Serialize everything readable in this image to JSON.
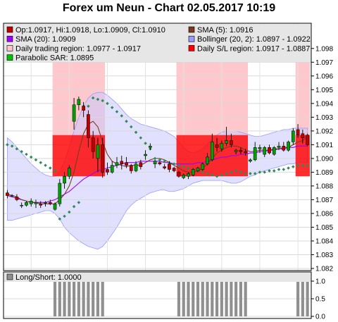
{
  "title": "Forex um Neun - Chart 02.05.2017 10:19",
  "colors": {
    "background": "#ffffff",
    "legend_bg": "#e6e6e6",
    "candle_up": "#00a000",
    "candle_down": "#c00000",
    "sma5": "#7a3b1c",
    "sma20": "#a000ff",
    "bollinger": "#c9c9ff",
    "bollinger_edge": "#9a9aff",
    "trading_region": "#ffc8cc",
    "sl_region": "#ff0000",
    "sl_region_overlap": "#d81a40",
    "sar": "#2e8b57",
    "longshort": "#909090"
  },
  "chart_data": [
    {
      "type": "candlestick",
      "legend": [
        {
          "label": "Op:1.0917, Hi:1.0918, Lo:1.0909, Cl:1.0910",
          "swatch": "#c00000"
        },
        {
          "label": "SMA (5): 1.0916",
          "swatch": "#7a3b1c"
        },
        {
          "label": "SMA (20): 1.0909",
          "swatch": "#a000ff"
        },
        {
          "label": "Bollinger (20, 2): 1.0897 - 1.0922",
          "swatch": "#9a9aff"
        },
        {
          "label": "Daily trading region: 1.0977 - 1.0917",
          "swatch": "#ffc8cc"
        },
        {
          "label": "Daily S/L region: 1.0917 - 1.0887",
          "swatch": "#ff0000"
        },
        {
          "label": "Parabolic SAR: 1.0895",
          "swatch": "#00c000"
        }
      ],
      "ylim": [
        1.082,
        1.0985
      ],
      "yticks": [
        "1.082",
        "1.083",
        "1.084",
        "1.085",
        "1.086",
        "1.087",
        "1.088",
        "1.089",
        "1.090",
        "1.091",
        "1.092",
        "1.093",
        "1.094",
        "1.095",
        "1.096",
        "1.097",
        "1.098"
      ],
      "candles": [
        {
          "o": 1.0875,
          "h": 1.0877,
          "l": 1.0871,
          "c": 1.0873
        },
        {
          "o": 1.0873,
          "h": 1.0874,
          "l": 1.0872,
          "c": 1.0873
        },
        {
          "o": 1.0872,
          "h": 1.0874,
          "l": 1.0869,
          "c": 1.087
        },
        {
          "o": 1.0866,
          "h": 1.0868,
          "l": 1.0864,
          "c": 1.0866
        },
        {
          "o": 1.0866,
          "h": 1.0869,
          "l": 1.0865,
          "c": 1.0868
        },
        {
          "o": 1.0867,
          "h": 1.0871,
          "l": 1.0865,
          "c": 1.0869
        },
        {
          "o": 1.0867,
          "h": 1.087,
          "l": 1.0864,
          "c": 1.0868
        },
        {
          "o": 1.0867,
          "h": 1.0869,
          "l": 1.0864,
          "c": 1.0866
        },
        {
          "o": 1.0868,
          "h": 1.0869,
          "l": 1.0865,
          "c": 1.0868
        },
        {
          "o": 1.0868,
          "h": 1.087,
          "l": 1.0866,
          "c": 1.0867
        },
        {
          "o": 1.0863,
          "h": 1.0868,
          "l": 1.0862,
          "c": 1.0867
        },
        {
          "o": 1.0867,
          "h": 1.0885,
          "l": 1.0865,
          "c": 1.0882
        },
        {
          "o": 1.0882,
          "h": 1.089,
          "l": 1.0878,
          "c": 1.0887
        },
        {
          "o": 1.0887,
          "h": 1.0895,
          "l": 1.0885,
          "c": 1.0893
        },
        {
          "o": 1.0927,
          "h": 1.0944,
          "l": 1.0921,
          "c": 1.0939
        },
        {
          "o": 1.0939,
          "h": 1.0945,
          "l": 1.0935,
          "c": 1.0943
        },
        {
          "o": 1.0938,
          "h": 1.0941,
          "l": 1.093,
          "c": 1.0935
        },
        {
          "o": 1.0932,
          "h": 1.0935,
          "l": 1.0908,
          "c": 1.0915
        },
        {
          "o": 1.0915,
          "h": 1.092,
          "l": 1.09,
          "c": 1.0905
        },
        {
          "o": 1.09,
          "h": 1.0915,
          "l": 1.089,
          "c": 1.091
        },
        {
          "o": 1.091,
          "h": 1.0915,
          "l": 1.0886,
          "c": 1.089
        },
        {
          "o": 1.0892,
          "h": 1.0897,
          "l": 1.0888,
          "c": 1.089
        },
        {
          "o": 1.089,
          "h": 1.0898,
          "l": 1.0889,
          "c": 1.0895
        },
        {
          "o": 1.0895,
          "h": 1.0901,
          "l": 1.0893,
          "c": 1.0897
        },
        {
          "o": 1.0898,
          "h": 1.0902,
          "l": 1.0892,
          "c": 1.0896
        },
        {
          "o": 1.0897,
          "h": 1.0901,
          "l": 1.0893,
          "c": 1.0895
        },
        {
          "o": 1.0895,
          "h": 1.0896,
          "l": 1.0889,
          "c": 1.0891
        },
        {
          "o": 1.0891,
          "h": 1.0898,
          "l": 1.089,
          "c": 1.0896
        },
        {
          "o": 1.0897,
          "h": 1.0899,
          "l": 1.0892,
          "c": 1.0894
        },
        {
          "o": 1.0902,
          "h": 1.0906,
          "l": 1.0899,
          "c": 1.0903
        },
        {
          "o": 1.0908,
          "h": 1.0911,
          "l": 1.0906,
          "c": 1.0909
        },
        {
          "o": 1.0896,
          "h": 1.0899,
          "l": 1.0893,
          "c": 1.0898
        },
        {
          "o": 1.0897,
          "h": 1.0898,
          "l": 1.0895,
          "c": 1.0896
        },
        {
          "o": 1.0894,
          "h": 1.0896,
          "l": 1.0892,
          "c": 1.0893
        },
        {
          "o": 1.0896,
          "h": 1.0898,
          "l": 1.089,
          "c": 1.0892
        },
        {
          "o": 1.0893,
          "h": 1.0894,
          "l": 1.089,
          "c": 1.0891
        },
        {
          "o": 1.089,
          "h": 1.0891,
          "l": 1.0886,
          "c": 1.0887
        },
        {
          "o": 1.0886,
          "h": 1.0889,
          "l": 1.0885,
          "c": 1.0888
        },
        {
          "o": 1.0887,
          "h": 1.089,
          "l": 1.0885,
          "c": 1.0889
        },
        {
          "o": 1.0888,
          "h": 1.0893,
          "l": 1.0887,
          "c": 1.0892
        },
        {
          "o": 1.0891,
          "h": 1.0894,
          "l": 1.089,
          "c": 1.0893
        },
        {
          "o": 1.0892,
          "h": 1.0897,
          "l": 1.0891,
          "c": 1.0896
        },
        {
          "o": 1.0896,
          "h": 1.0904,
          "l": 1.0895,
          "c": 1.0901
        },
        {
          "o": 1.0899,
          "h": 1.0918,
          "l": 1.0898,
          "c": 1.0912
        },
        {
          "o": 1.091,
          "h": 1.0915,
          "l": 1.0905,
          "c": 1.0908
        },
        {
          "o": 1.0907,
          "h": 1.0913,
          "l": 1.0905,
          "c": 1.0911
        },
        {
          "o": 1.0911,
          "h": 1.0923,
          "l": 1.0909,
          "c": 1.0913
        },
        {
          "o": 1.0913,
          "h": 1.0918,
          "l": 1.0908,
          "c": 1.091
        },
        {
          "o": 1.0905,
          "h": 1.0907,
          "l": 1.0903,
          "c": 1.0906
        },
        {
          "o": 1.0906,
          "h": 1.0908,
          "l": 1.0903,
          "c": 1.0905
        },
        {
          "o": 1.0905,
          "h": 1.0907,
          "l": 1.0902,
          "c": 1.0904
        },
        {
          "o": 1.0898,
          "h": 1.09,
          "l": 1.0897,
          "c": 1.0899
        },
        {
          "o": 1.0899,
          "h": 1.0912,
          "l": 1.0898,
          "c": 1.0908
        },
        {
          "o": 1.0907,
          "h": 1.091,
          "l": 1.0904,
          "c": 1.0908
        },
        {
          "o": 1.0903,
          "h": 1.0909,
          "l": 1.0901,
          "c": 1.0908
        },
        {
          "o": 1.0908,
          "h": 1.091,
          "l": 1.0903,
          "c": 1.0904
        },
        {
          "o": 1.0903,
          "h": 1.0909,
          "l": 1.0902,
          "c": 1.0908
        },
        {
          "o": 1.0908,
          "h": 1.0912,
          "l": 1.0906,
          "c": 1.0909
        },
        {
          "o": 1.0909,
          "h": 1.0912,
          "l": 1.0905,
          "c": 1.0906
        },
        {
          "o": 1.0906,
          "h": 1.0913,
          "l": 1.0905,
          "c": 1.0912
        },
        {
          "o": 1.0912,
          "h": 1.0922,
          "l": 1.091,
          "c": 1.092
        },
        {
          "o": 1.0921,
          "h": 1.0925,
          "l": 1.0915,
          "c": 1.0917
        },
        {
          "o": 1.0918,
          "h": 1.0921,
          "l": 1.0911,
          "c": 1.0915
        },
        {
          "o": 1.0917,
          "h": 1.0918,
          "l": 1.0909,
          "c": 1.091
        }
      ],
      "sma5": [
        1.0874,
        1.0873,
        1.0872,
        1.087,
        1.0869,
        1.0868,
        1.0868,
        1.0867,
        1.0867,
        1.0867,
        1.0867,
        1.087,
        1.0874,
        1.088,
        1.089,
        1.0905,
        1.0918,
        1.0925,
        1.0927,
        1.0923,
        1.0912,
        1.0903,
        1.0898,
        1.0896,
        1.0895,
        1.0894,
        1.0895,
        1.0895,
        1.0895,
        1.0897,
        1.0899,
        1.09,
        1.09,
        1.0899,
        1.0897,
        1.0895,
        1.0893,
        1.0891,
        1.089,
        1.089,
        1.0891,
        1.0893,
        1.0896,
        1.09,
        1.0904,
        1.0906,
        1.0908,
        1.0909,
        1.0909,
        1.0908,
        1.0906,
        1.0905,
        1.0905,
        1.0906,
        1.0906,
        1.0906,
        1.0907,
        1.0907,
        1.0908,
        1.0908,
        1.091,
        1.0912,
        1.0913,
        1.0916
      ],
      "sma20": [
        1.0873,
        1.0872,
        1.0871,
        1.087,
        1.0869,
        1.0868,
        1.0868,
        1.0868,
        1.0868,
        1.0869,
        1.087,
        1.0872,
        1.0874,
        1.0876,
        1.0879,
        1.0882,
        1.0885,
        1.0887,
        1.0889,
        1.0891,
        1.0892,
        1.0893,
        1.0894,
        1.0895,
        1.0896,
        1.0897,
        1.0897,
        1.0897,
        1.0898,
        1.0898,
        1.0898,
        1.0898,
        1.0898,
        1.0897,
        1.0897,
        1.0896,
        1.0896,
        1.0896,
        1.0896,
        1.0896,
        1.0897,
        1.0897,
        1.0898,
        1.0899,
        1.09,
        1.0901,
        1.0901,
        1.0902,
        1.0902,
        1.0903,
        1.0903,
        1.0904,
        1.0904,
        1.0905,
        1.0905,
        1.0906,
        1.0906,
        1.0907,
        1.0907,
        1.0908,
        1.0908,
        1.0909,
        1.0909,
        1.0909
      ],
      "bollinger_upper": [
        1.0915,
        1.0912,
        1.0908,
        1.0904,
        1.09,
        1.0896,
        1.0893,
        1.089,
        1.0888,
        1.0887,
        1.0887,
        1.089,
        1.0898,
        1.0908,
        1.092,
        1.093,
        1.0938,
        1.0944,
        1.0947,
        1.0948,
        1.0948,
        1.0946,
        1.0943,
        1.094,
        1.0936,
        1.0932,
        1.0929,
        1.0927,
        1.0925,
        1.0924,
        1.0923,
        1.0922,
        1.0921,
        1.092,
        1.0918,
        1.0916,
        1.0912,
        1.0908,
        1.0905,
        1.0904,
        1.0905,
        1.0907,
        1.091,
        1.0914,
        1.0917,
        1.0919,
        1.092,
        1.092,
        1.092,
        1.0919,
        1.0918,
        1.0917,
        1.0916,
        1.0916,
        1.0917,
        1.0918,
        1.0919,
        1.092,
        1.0921,
        1.0921,
        1.0922,
        1.0922,
        1.0922,
        1.0922
      ],
      "bollinger_lower": [
        1.0855,
        1.0855,
        1.0856,
        1.0857,
        1.0858,
        1.0859,
        1.086,
        1.0861,
        1.0862,
        1.0862,
        1.086,
        1.0856,
        1.085,
        1.0846,
        1.0843,
        1.084,
        1.0838,
        1.0836,
        1.0835,
        1.0834,
        1.0836,
        1.084,
        1.0845,
        1.085,
        1.0856,
        1.0862,
        1.0866,
        1.0869,
        1.0871,
        1.0873,
        1.0875,
        1.0876,
        1.0877,
        1.0877,
        1.0876,
        1.0876,
        1.0877,
        1.0878,
        1.088,
        1.0882,
        1.0883,
        1.0884,
        1.0884,
        1.0884,
        1.0884,
        1.0884,
        1.0883,
        1.0882,
        1.0882,
        1.0883,
        1.0885,
        1.0887,
        1.0888,
        1.089,
        1.0891,
        1.0892,
        1.0893,
        1.0894,
        1.0895,
        1.0896,
        1.0896,
        1.0897,
        1.0897,
        1.0897
      ],
      "sar": [
        1.091,
        1.0909,
        1.0907,
        1.0905,
        1.0903,
        1.0901,
        1.0899,
        1.0897,
        1.0895,
        1.0893,
        1.0891,
        1.0856,
        1.0858,
        1.0861,
        1.0865,
        1.0868,
        1.0938,
        1.0938,
        1.0944,
        1.0943,
        1.0942,
        1.094,
        1.0937,
        1.0934,
        1.0931,
        1.0927,
        1.0923,
        1.0919,
        1.0915,
        1.0911,
        1.0907,
        1.09,
        1.0899,
        1.0898,
        1.0897,
        1.0896,
        1.0895,
        1.0894,
        1.0893,
        1.0892,
        1.0891,
        1.089,
        1.0889,
        1.0888,
        1.0887,
        1.0888,
        1.0889,
        1.089,
        1.0891,
        1.089,
        1.0889,
        1.0889,
        1.0889,
        1.089,
        1.089,
        1.0891,
        1.0891,
        1.0892,
        1.0892,
        1.0893,
        1.0894,
        1.0895,
        1.0895,
        1.0895
      ],
      "trading_regions": [
        {
          "from": 10,
          "to": 20,
          "top": 1.0977,
          "bottom": 1.0917
        },
        {
          "from": 36,
          "to": 50,
          "top": 1.0977,
          "bottom": 1.0917
        },
        {
          "from": 61,
          "to": 63,
          "top": 1.0977,
          "bottom": 1.0917
        }
      ],
      "sl_regions": [
        {
          "from": 10,
          "to": 20,
          "top": 1.0917,
          "bottom": 1.0887
        },
        {
          "from": 36,
          "to": 50,
          "top": 1.0917,
          "bottom": 1.0887
        },
        {
          "from": 61,
          "to": 63,
          "top": 1.0917,
          "bottom": 1.0887
        }
      ]
    },
    {
      "type": "bar",
      "legend": [
        {
          "label": "Long/Short: 1.0000",
          "swatch": "#909090"
        }
      ],
      "ylim": [
        0,
        1
      ],
      "yticks": [
        "0.0",
        "0.5",
        "1.0"
      ],
      "bars": [
        {
          "from": 10,
          "to": 20,
          "value": 1
        },
        {
          "from": 36,
          "to": 50,
          "value": 1
        },
        {
          "from": 61,
          "to": 63,
          "value": 1
        }
      ]
    }
  ]
}
